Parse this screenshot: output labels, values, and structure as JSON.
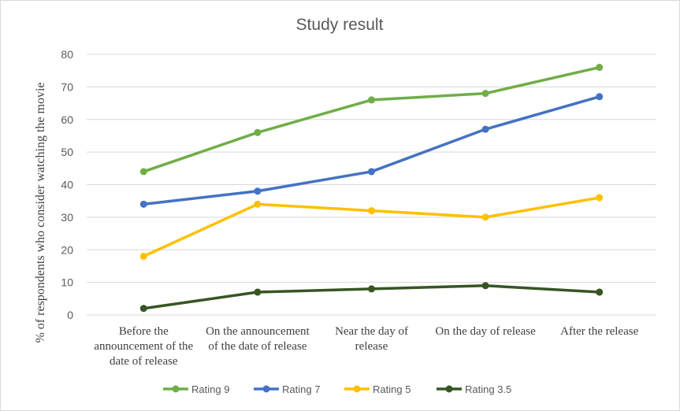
{
  "chart_data": {
    "type": "line",
    "title": "Study result",
    "ylabel": "% of respondents who consider watching  the movie",
    "xlabel": "",
    "ylim": [
      0,
      80
    ],
    "yticks": [
      0,
      10,
      20,
      30,
      40,
      50,
      60,
      70,
      80
    ],
    "categories": [
      "Before the announcement of the date of release",
      "On the announcement of the date of release",
      "Near the day of release",
      "On the day of release",
      "After the release"
    ],
    "category_lines": [
      [
        "Before the",
        "announcement of the",
        "date of release"
      ],
      [
        "On the announcement",
        "of the date of release"
      ],
      [
        "Near the day of",
        "release"
      ],
      [
        "On the day of release"
      ],
      [
        "After the release"
      ]
    ],
    "series": [
      {
        "name": "Rating 9",
        "color": "#70ad47",
        "values": [
          44,
          56,
          66,
          68,
          76
        ]
      },
      {
        "name": "Rating 7",
        "color": "#4472c4",
        "values": [
          34,
          38,
          44,
          57,
          67
        ]
      },
      {
        "name": "Rating 5",
        "color": "#ffc000",
        "values": [
          18,
          34,
          32,
          30,
          36
        ]
      },
      {
        "name": "Rating 3.5",
        "color": "#375623",
        "values": [
          2,
          7,
          8,
          9,
          7
        ]
      }
    ],
    "legend_position": "bottom",
    "grid": true
  }
}
